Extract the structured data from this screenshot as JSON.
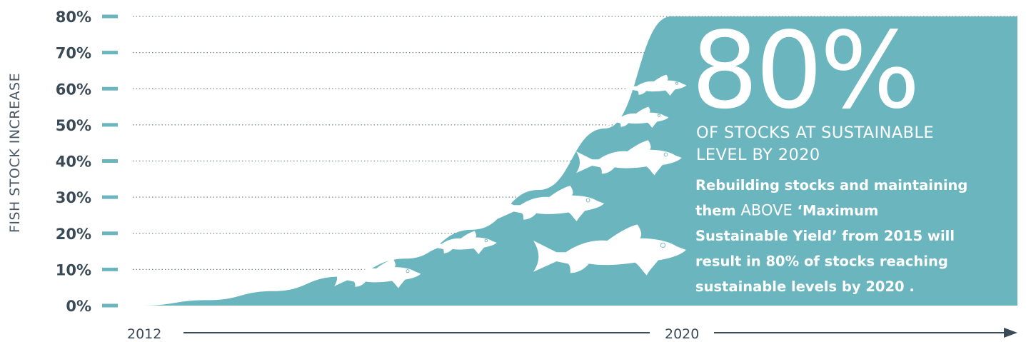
{
  "chart_data": {
    "type": "area",
    "ylabel": "FISH STOCK INCREASE",
    "y_ticks": [
      "0%",
      "10%",
      "20%",
      "30%",
      "40%",
      "50%",
      "60%",
      "70%",
      "80%"
    ],
    "ylim": [
      0,
      80
    ],
    "x_ticks": [
      "2012",
      "2020"
    ],
    "xlim": [
      2012,
      2020
    ],
    "grid": true,
    "series": [
      {
        "values": [
          {
            "x": 2012,
            "y": 0
          },
          {
            "x": 2013,
            "y": 1.5
          },
          {
            "x": 2014,
            "y": 4
          },
          {
            "x": 2015,
            "y": 8
          },
          {
            "x": 2016,
            "y": 13
          },
          {
            "x": 2017,
            "y": 21
          },
          {
            "x": 2018,
            "y": 32
          },
          {
            "x": 2019,
            "y": 49
          },
          {
            "x": 2020,
            "y": 80
          }
        ]
      }
    ],
    "fill_color": "#6bb5bf",
    "headline": "80%",
    "subheadline": [
      "OF STOCKS AT SUSTAINABLE",
      "LEVEL BY 2020"
    ],
    "body_lines": [
      [
        {
          "text": "Rebuilding stocks and maintaining"
        }
      ],
      [
        {
          "text": "them "
        },
        {
          "text": "ABOVE",
          "caps": true
        },
        {
          "text": " ‘Maximum"
        }
      ],
      [
        {
          "text": "Sustainable Yield’ from 2015 will"
        }
      ],
      [
        {
          "text": "result in 80% of stocks reaching"
        }
      ],
      [
        {
          "text": "sustainable levels by 2020 ."
        }
      ]
    ]
  },
  "colors": {
    "accent": "#6bb5bf",
    "text": "#3b4a57",
    "fish": "#ffffff",
    "axis": "#3b4a57"
  }
}
